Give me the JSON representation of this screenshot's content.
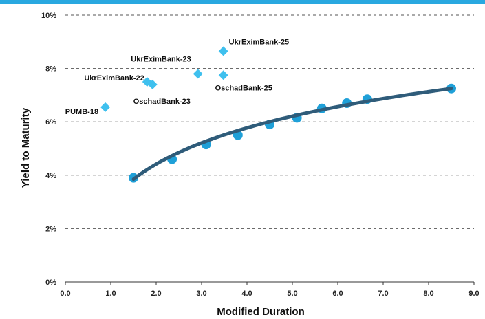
{
  "chart_data": {
    "type": "scatter",
    "xlabel": "Modified Duration",
    "ylabel": "Yield to Maturity",
    "xlim": [
      0,
      9
    ],
    "ylim": [
      0,
      10
    ],
    "x_ticks": [
      "0.0",
      "1.0",
      "2.0",
      "3.0",
      "4.0",
      "5.0",
      "6.0",
      "7.0",
      "8.0",
      "9.0"
    ],
    "y_ticks": [
      "0%",
      "2%",
      "4%",
      "6%",
      "8%",
      "10%"
    ],
    "grid": "horizontal-dashed",
    "colors": {
      "top_band": "#29a8e0",
      "curve": "#2f5c7a",
      "circle_points": "#1fa0d8",
      "diamond_points": "#3fc0ee",
      "grid": "#555555"
    },
    "series": [
      {
        "marker": "circle",
        "points": [
          {
            "x": 1.5,
            "y": 3.9
          },
          {
            "x": 2.35,
            "y": 4.6
          },
          {
            "x": 3.1,
            "y": 5.15
          },
          {
            "x": 3.8,
            "y": 5.5
          },
          {
            "x": 4.5,
            "y": 5.9
          },
          {
            "x": 5.1,
            "y": 6.15
          },
          {
            "x": 5.65,
            "y": 6.5
          },
          {
            "x": 6.2,
            "y": 6.7
          },
          {
            "x": 6.65,
            "y": 6.85
          },
          {
            "x": 8.5,
            "y": 7.25
          }
        ]
      },
      {
        "marker": "diamond",
        "points": [
          {
            "x": 0.88,
            "y": 6.55,
            "label": "PUMB-18"
          },
          {
            "x": 1.8,
            "y": 7.5,
            "label": "UkrEximBank-22"
          },
          {
            "x": 1.92,
            "y": 7.4,
            "label": "OschadBank-23"
          },
          {
            "x": 2.92,
            "y": 7.8,
            "label": "UkrEximBank-23"
          },
          {
            "x": 3.48,
            "y": 7.75,
            "label": "OschadBank-25"
          },
          {
            "x": 3.48,
            "y": 8.65,
            "label": "UkrEximBank-25"
          }
        ]
      }
    ],
    "trendline": {
      "type": "logarithmic",
      "x_range": [
        1.5,
        8.5
      ],
      "start_y": 3.85,
      "end_y": 7.25
    }
  }
}
